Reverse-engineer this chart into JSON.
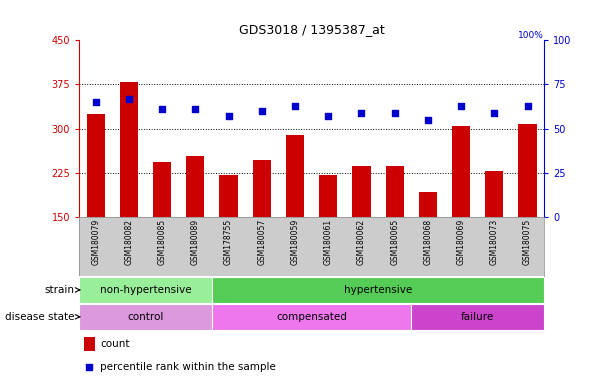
{
  "title": "GDS3018 / 1395387_at",
  "samples": [
    "GSM180079",
    "GSM180082",
    "GSM180085",
    "GSM180089",
    "GSM178755",
    "GSM180057",
    "GSM180059",
    "GSM180061",
    "GSM180062",
    "GSM180065",
    "GSM180068",
    "GSM180069",
    "GSM180073",
    "GSM180075"
  ],
  "counts": [
    325,
    380,
    243,
    253,
    222,
    247,
    290,
    222,
    237,
    237,
    193,
    305,
    228,
    308
  ],
  "percentiles": [
    65,
    67,
    61,
    61,
    57,
    60,
    63,
    57,
    59,
    59,
    55,
    63,
    59,
    63
  ],
  "ylim_left": [
    150,
    450
  ],
  "yticks_left": [
    150,
    225,
    300,
    375,
    450
  ],
  "ylim_right": [
    0,
    100
  ],
  "yticks_right": [
    0,
    25,
    50,
    75,
    100
  ],
  "bar_color": "#cc0000",
  "dot_color": "#0000cc",
  "strain_groups": [
    {
      "label": "non-hypertensive",
      "start": 0,
      "end": 4,
      "color": "#99ee99"
    },
    {
      "label": "hypertensive",
      "start": 4,
      "end": 14,
      "color": "#55cc55"
    }
  ],
  "disease_groups": [
    {
      "label": "control",
      "start": 0,
      "end": 4,
      "color": "#dd99dd"
    },
    {
      "label": "compensated",
      "start": 4,
      "end": 10,
      "color": "#ee77ee"
    },
    {
      "label": "failure",
      "start": 10,
      "end": 14,
      "color": "#cc44cc"
    }
  ],
  "legend_count_label": "count",
  "legend_percentile_label": "percentile rank within the sample",
  "strain_label": "strain",
  "disease_label": "disease state",
  "background_color": "#ffffff",
  "tick_area_color": "#cccccc"
}
